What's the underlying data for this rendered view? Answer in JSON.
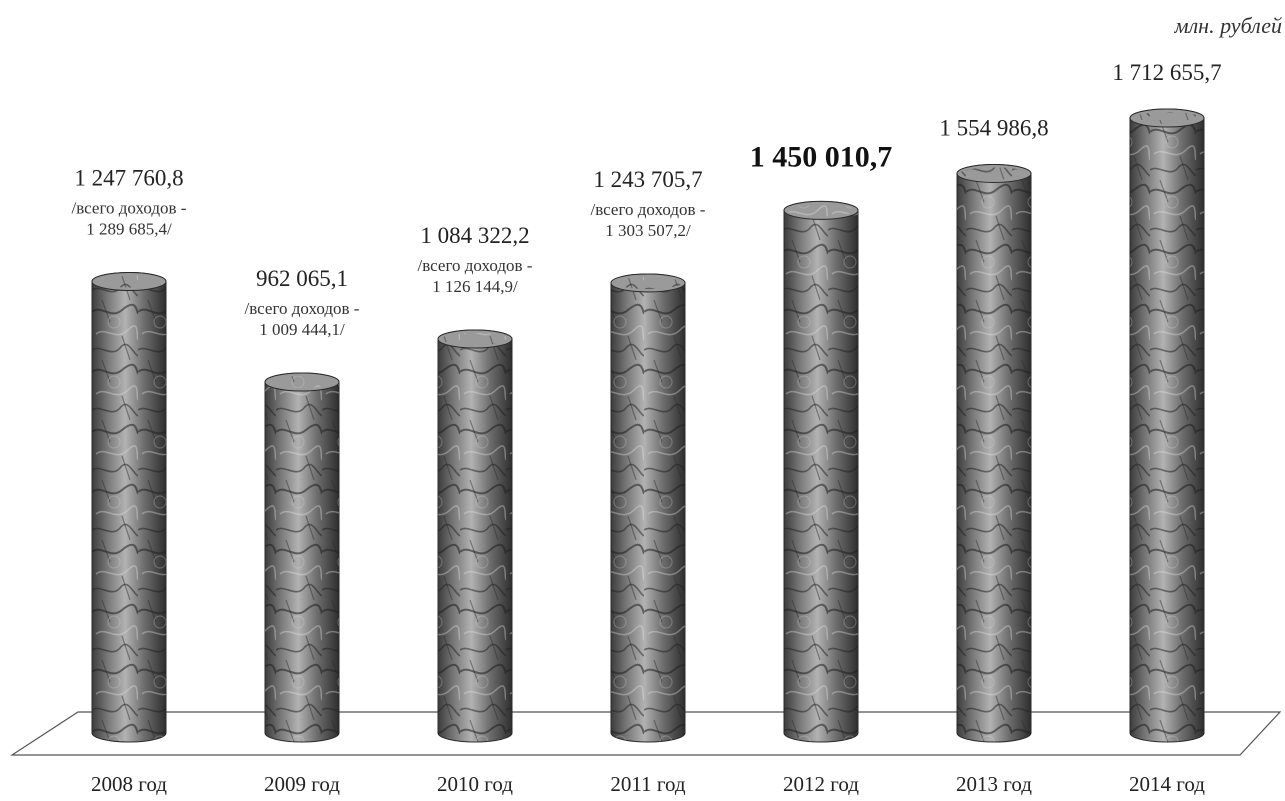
{
  "chart_data": {
    "type": "bar",
    "style": "3d-cylinder",
    "unit_label": "млн. рублей",
    "categories": [
      "2008 год",
      "2009 год",
      "2010 год",
      "2011 год",
      "2012 год",
      "2013 год",
      "2014 год"
    ],
    "values": [
      1247760.8,
      962065.1,
      1084322.2,
      1243705.7,
      1450010.7,
      1554986.8,
      1712655.7
    ],
    "value_labels": [
      "1 247 760,8",
      "962 065,1",
      "1 084 322,2",
      "1 243 705,7",
      "1 450 010,7",
      "1 554 986,8",
      "1 712 655,7"
    ],
    "highlighted_label_index": 4,
    "notes": [
      [
        "/всего доходов -",
        "1 289 685,4/"
      ],
      [
        "/всего доходов -",
        "1 009 444,1/"
      ],
      [
        "/всего доходов -",
        "1 126 144,9/"
      ],
      [
        "/всего доходов -",
        "1 303 507,2/"
      ],
      [],
      [],
      []
    ],
    "grid": false,
    "bar_color": "#6e6e6e"
  }
}
